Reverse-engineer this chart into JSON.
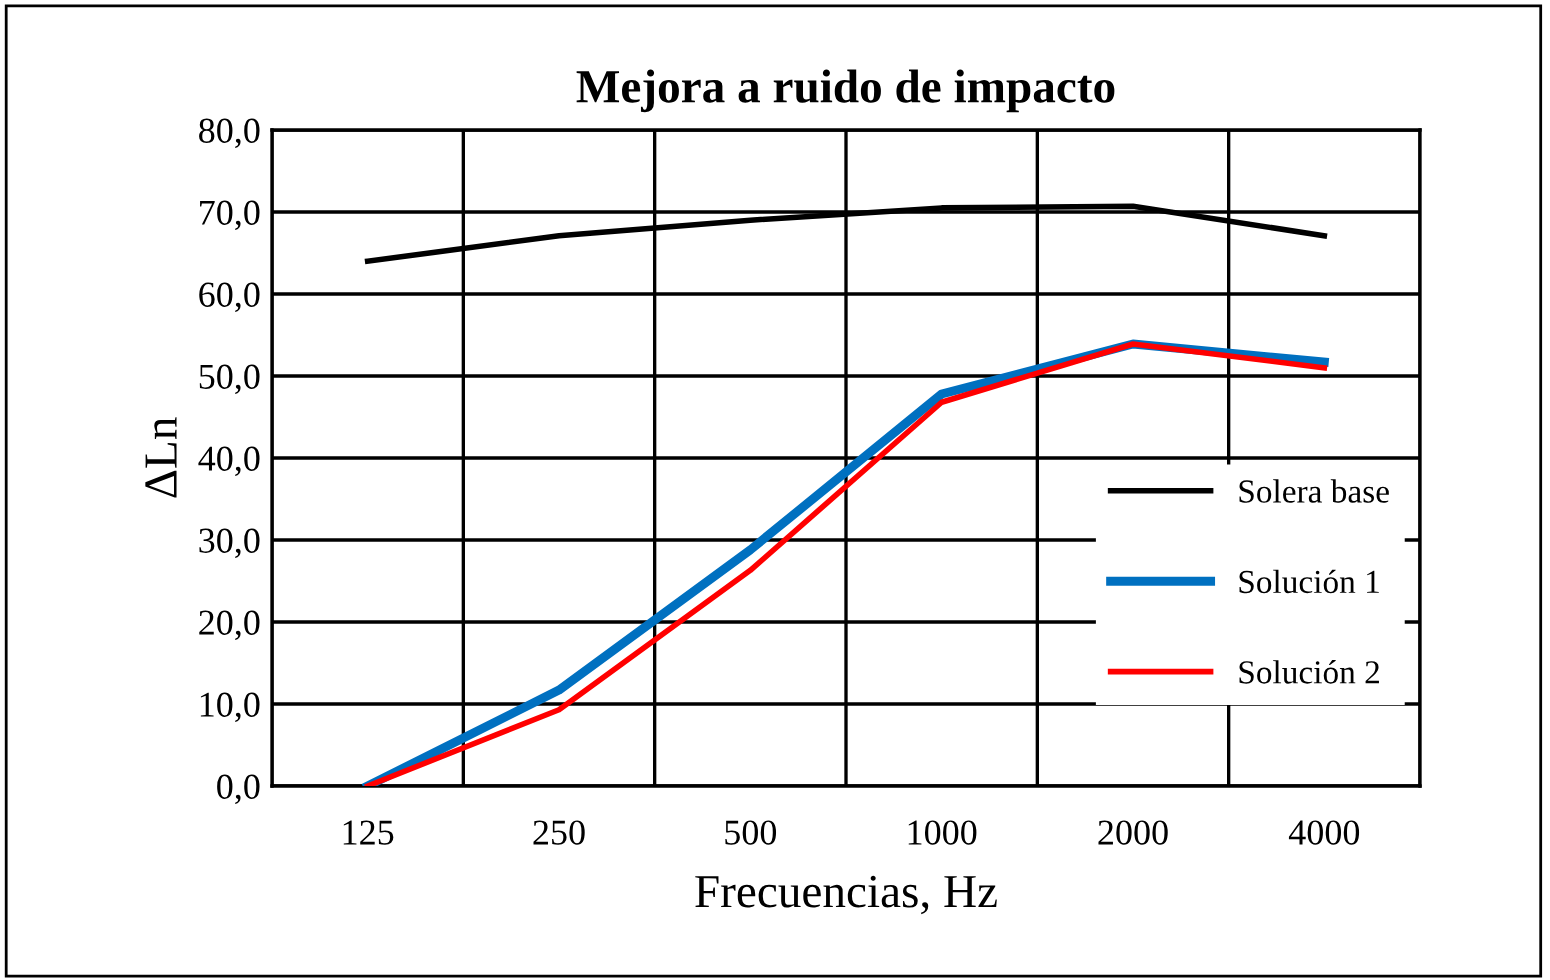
{
  "chart_data": {
    "type": "line",
    "title": "Mejora a ruido de impacto",
    "xlabel": "Frecuencias, Hz",
    "ylabel": "ΔLn",
    "categories": [
      "125",
      "250",
      "500",
      "1000",
      "2000",
      "4000"
    ],
    "series": [
      {
        "name": "Solera base",
        "color": "#000000",
        "values": [
          64.0,
          67.1,
          69.0,
          70.5,
          70.7,
          67.1
        ]
      },
      {
        "name": "Solución 1",
        "color": "#0070c0",
        "values": [
          0.0,
          11.7,
          28.8,
          47.8,
          53.9,
          51.7
        ]
      },
      {
        "name": "Solución 2",
        "color": "#ff0000",
        "values": [
          0.0,
          9.3,
          26.3,
          46.8,
          53.9,
          51.0
        ]
      }
    ],
    "ylim": [
      0,
      80
    ],
    "yticks": [
      {
        "value": 0,
        "label": "0,0"
      },
      {
        "value": 10,
        "label": "10,0"
      },
      {
        "value": 20,
        "label": "20,0"
      },
      {
        "value": 30,
        "label": "30,0"
      },
      {
        "value": 40,
        "label": "40,0"
      },
      {
        "value": 50,
        "label": "50,0"
      },
      {
        "value": 60,
        "label": "60,0"
      },
      {
        "value": 70,
        "label": "70,0"
      },
      {
        "value": 80,
        "label": "80,0"
      }
    ],
    "grid": true,
    "legend": "bottom right",
    "marker": "none",
    "line_style": "solid"
  }
}
